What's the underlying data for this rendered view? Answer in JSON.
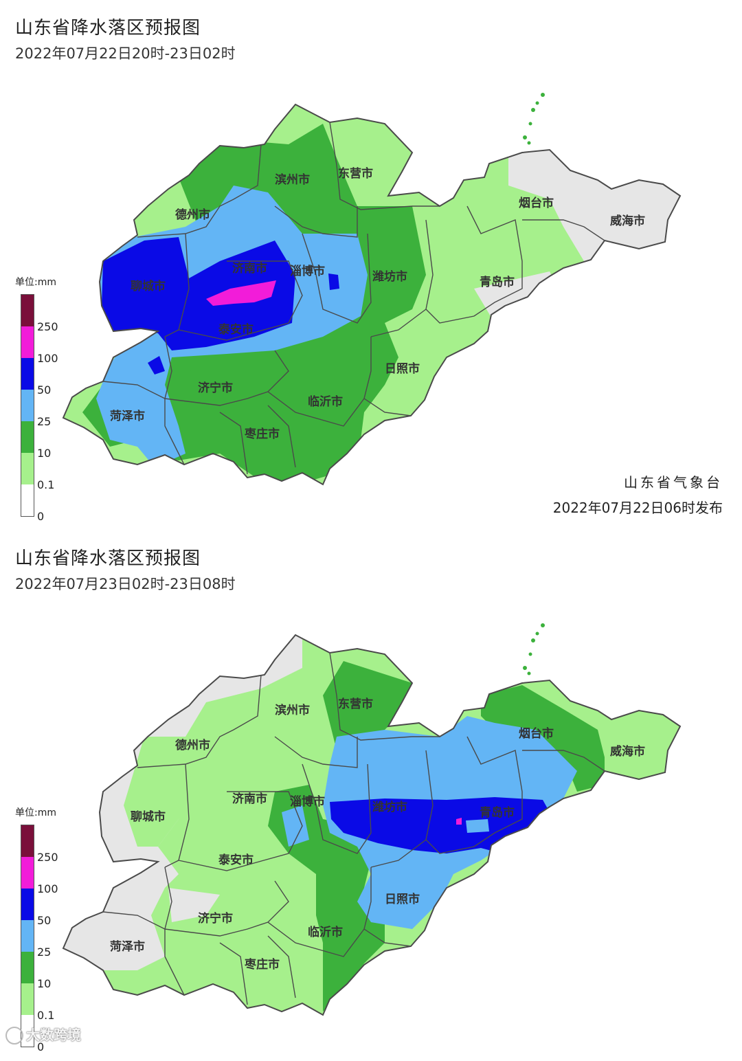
{
  "panels": [
    {
      "title": "山东省降水落区预报图",
      "period": "2022年07月22日20时-23日02时",
      "legend_unit": "单位:mm",
      "legend_labels": [
        "250",
        "100",
        "50",
        "25",
        "10",
        "0.1",
        "0"
      ],
      "credit_agency": "山东省气象台",
      "credit_issued": "2022年07月22日06时发布",
      "cities": [
        "滨州市",
        "东营市",
        "德州市",
        "烟台市",
        "威海市",
        "济南市",
        "淄博市",
        "潍坊市",
        "聊城市",
        "青岛市",
        "泰安市",
        "日照市",
        "济宁市",
        "临沂市",
        "菏泽市",
        "枣庄市"
      ]
    },
    {
      "title": "山东省降水落区预报图",
      "period": "2022年07月23日02时-23日08时",
      "legend_unit": "单位:mm",
      "legend_labels": [
        "250",
        "100",
        "50",
        "25",
        "10",
        "0.1",
        "0"
      ],
      "cities": [
        "滨州市",
        "东营市",
        "德州市",
        "烟台市",
        "威海市",
        "济南市",
        "淄博市",
        "潍坊市",
        "聊城市",
        "青岛市",
        "泰安市",
        "日照市",
        "济宁市",
        "临沂市",
        "菏泽市",
        "枣庄市"
      ]
    }
  ],
  "legend_colors": [
    "#7a0f3a",
    "#f21cd9",
    "#0a0ae6",
    "#63b5f5",
    "#3cb13c",
    "#a6f08c",
    "#ffffff"
  ],
  "map_colors": {
    "none": "#e6e6e6",
    "light": "#a6f08c",
    "moderate": "#3cb13c",
    "heavy": "#63b5f5",
    "rainstorm": "#0a0ae6",
    "downpour": "#f21cd9",
    "boundary": "#4a4a4a"
  },
  "watermark": "大数跨境"
}
